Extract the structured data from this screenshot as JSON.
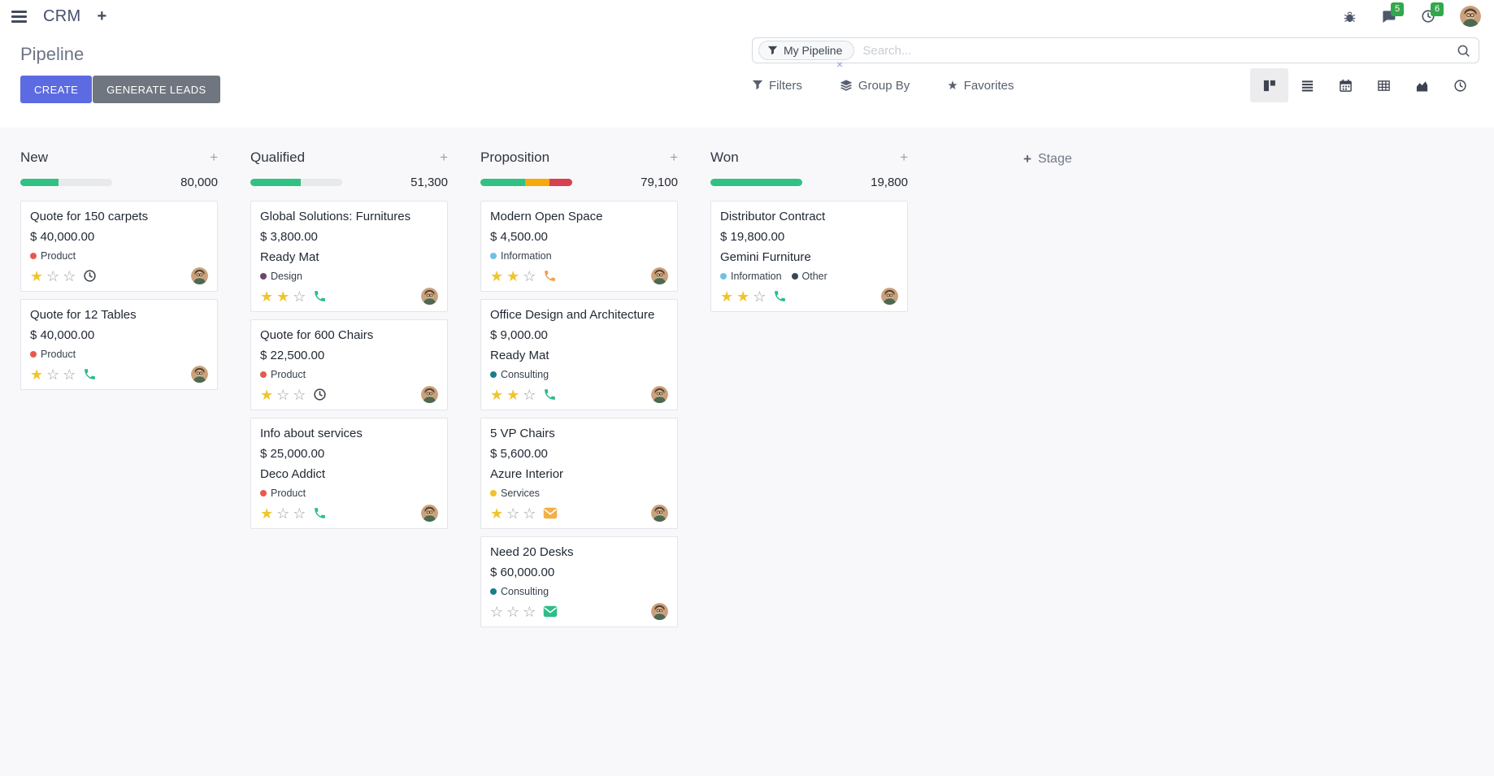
{
  "colors": {
    "primary": "#5c6be2",
    "secondary": "#70767f",
    "badge": "#32a84c"
  },
  "navbar": {
    "app_name": "CRM",
    "message_badge": "5",
    "activity_badge": "6"
  },
  "control_panel": {
    "title": "Pipeline",
    "create_label": "CREATE",
    "generate_label": "GENERATE LEADS",
    "search_facet": "My Pipeline",
    "search_placeholder": "Search...",
    "filters_label": "Filters",
    "group_by_label": "Group By",
    "favorites_label": "Favorites"
  },
  "board": {
    "add_stage_label": "Stage",
    "columns": [
      {
        "name": "New",
        "total": "80,000",
        "progress": [
          {
            "status": "success",
            "pct": 42,
            "color": "#31c183"
          }
        ],
        "cards": [
          {
            "title": "Quote for 150 carpets",
            "amount": "$ 40,000.00",
            "partner": "",
            "tags": [
              {
                "label": "Product",
                "color": "#e8584f"
              }
            ],
            "stars": 1,
            "activity": {
              "icon": "clock",
              "color": "#3b4249"
            }
          },
          {
            "title": "Quote for 12 Tables",
            "amount": "$ 40,000.00",
            "partner": "",
            "tags": [
              {
                "label": "Product",
                "color": "#e8584f"
              }
            ],
            "stars": 1,
            "activity": {
              "icon": "phone",
              "color": "#2ebe88"
            }
          }
        ]
      },
      {
        "name": "Qualified",
        "total": "51,300",
        "progress": [
          {
            "status": "success",
            "pct": 55,
            "color": "#31c183"
          }
        ],
        "cards": [
          {
            "title": "Global Solutions: Furnitures",
            "amount": "$ 3,800.00",
            "partner": "Ready Mat",
            "tags": [
              {
                "label": "Design",
                "color": "#71436f"
              }
            ],
            "stars": 2,
            "activity": {
              "icon": "phone",
              "color": "#2ebe88"
            }
          },
          {
            "title": "Quote for 600 Chairs",
            "amount": "$ 22,500.00",
            "partner": "",
            "tags": [
              {
                "label": "Product",
                "color": "#e8584f"
              }
            ],
            "stars": 1,
            "activity": {
              "icon": "clock",
              "color": "#3b4249"
            }
          },
          {
            "title": "Info about services",
            "amount": "$ 25,000.00",
            "partner": "Deco Addict",
            "tags": [
              {
                "label": "Product",
                "color": "#e8584f"
              }
            ],
            "stars": 1,
            "activity": {
              "icon": "phone",
              "color": "#2ebe88"
            }
          }
        ]
      },
      {
        "name": "Proposition",
        "total": "79,100",
        "progress": [
          {
            "status": "success",
            "pct": 49,
            "color": "#31c183"
          },
          {
            "status": "warning",
            "pct": 26,
            "color": "#f5a90d"
          },
          {
            "status": "danger",
            "pct": 25,
            "color": "#d7404e"
          }
        ],
        "cards": [
          {
            "title": "Modern Open Space",
            "amount": "$ 4,500.00",
            "partner": "",
            "tags": [
              {
                "label": "Information",
                "color": "#6fc0e8"
              }
            ],
            "stars": 2,
            "activity": {
              "icon": "phone",
              "color": "#eda353"
            }
          },
          {
            "title": "Office Design and Architecture",
            "amount": "$ 9,000.00",
            "partner": "Ready Mat",
            "tags": [
              {
                "label": "Consulting",
                "color": "#187e8c"
              }
            ],
            "stars": 2,
            "activity": {
              "icon": "phone",
              "color": "#2ebe88"
            }
          },
          {
            "title": "5 VP Chairs",
            "amount": "$ 5,600.00",
            "partner": "Azure Interior",
            "tags": [
              {
                "label": "Services",
                "color": "#f0c22c"
              }
            ],
            "stars": 1,
            "activity": {
              "icon": "mail",
              "color": "#f2b04a"
            }
          },
          {
            "title": "Need 20 Desks",
            "amount": "$ 60,000.00",
            "partner": "",
            "tags": [
              {
                "label": "Consulting",
                "color": "#187e8c"
              }
            ],
            "stars": 0,
            "activity": {
              "icon": "mail",
              "color": "#2ebe88"
            }
          }
        ]
      },
      {
        "name": "Won",
        "total": "19,800",
        "progress": [
          {
            "status": "success",
            "pct": 100,
            "color": "#31c183"
          }
        ],
        "cards": [
          {
            "title": "Distributor Contract",
            "amount": "$ 19,800.00",
            "partner": "Gemini Furniture",
            "tags": [
              {
                "label": "Information",
                "color": "#6fc0e8"
              },
              {
                "label": "Other",
                "color": "#39465a"
              }
            ],
            "stars": 2,
            "activity": {
              "icon": "phone",
              "color": "#2ebe88"
            }
          }
        ]
      }
    ]
  }
}
